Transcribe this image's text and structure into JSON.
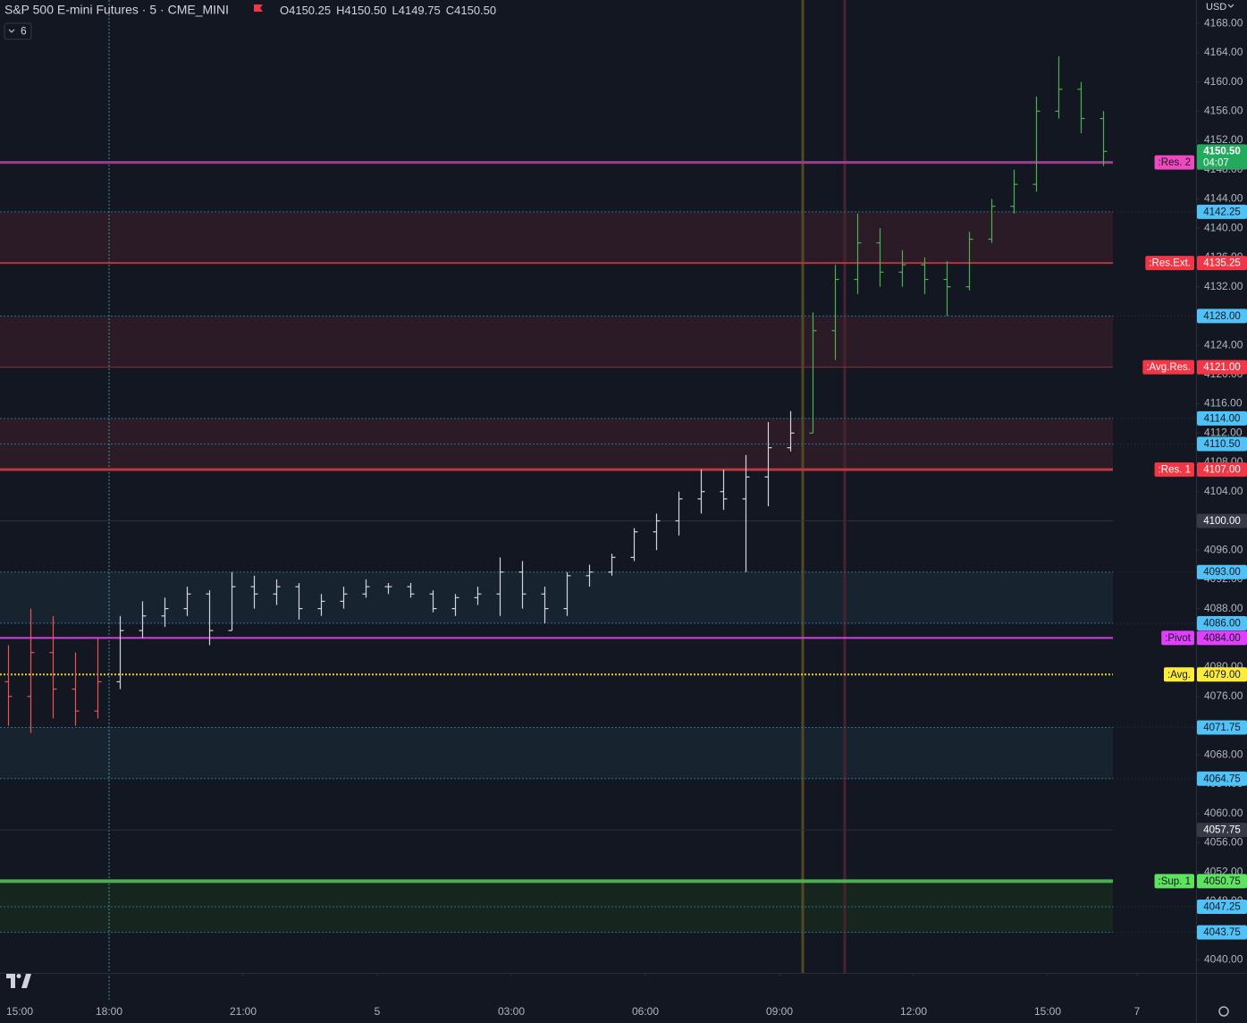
{
  "header": {
    "title": "S&P 500 E-mini Futures · 5 · CME_MINI",
    "ohlc": [
      "O4150.25",
      "H4150.50",
      "L4149.75",
      "C4150.50"
    ],
    "indicators": "6",
    "currency": "USD"
  },
  "chart_data": {
    "type": "ohlc",
    "xlim": [
      -0.44,
      26.32
    ],
    "ylim": [
      4038.2,
      4171.2
    ],
    "xticks": [
      {
        "value": 0,
        "label": "15:00"
      },
      {
        "value": 2,
        "label": "18:00"
      },
      {
        "value": 5,
        "label": "21:00"
      },
      {
        "value": 8,
        "label": "5"
      },
      {
        "value": 11,
        "label": "03:00"
      },
      {
        "value": 14,
        "label": "06:00"
      },
      {
        "value": 17,
        "label": "09:00"
      },
      {
        "value": 20,
        "label": "12:00"
      },
      {
        "value": 23,
        "label": "15:00"
      },
      {
        "value": 25,
        "label": "7"
      }
    ],
    "yticks": [
      {
        "value": 4040,
        "label": "4040.00"
      },
      {
        "value": 4044,
        "label": "4044.00"
      },
      {
        "value": 4048,
        "label": "4048.00"
      },
      {
        "value": 4052,
        "label": "4052.00"
      },
      {
        "value": 4056,
        "label": "4056.00"
      },
      {
        "value": 4060,
        "label": "4060.00"
      },
      {
        "value": 4064,
        "label": "4064.00"
      },
      {
        "value": 4068,
        "label": "4068.00"
      },
      {
        "value": 4072,
        "label": "4072.00"
      },
      {
        "value": 4076,
        "label": "4076.00"
      },
      {
        "value": 4080,
        "label": "4080.00"
      },
      {
        "value": 4084,
        "label": "4084.00"
      },
      {
        "value": 4088,
        "label": "4088.00"
      },
      {
        "value": 4092,
        "label": "4092.00"
      },
      {
        "value": 4096,
        "label": "4096.00"
      },
      {
        "value": 4100,
        "label": "4100.00"
      },
      {
        "value": 4104,
        "label": "4104.00"
      },
      {
        "value": 4108,
        "label": "4108.00"
      },
      {
        "value": 4112,
        "label": "4112.00"
      },
      {
        "value": 4116,
        "label": "4116.00"
      },
      {
        "value": 4120,
        "label": "4120.00"
      },
      {
        "value": 4124,
        "label": "4124.00"
      },
      {
        "value": 4128,
        "label": "4128.00"
      },
      {
        "value": 4132,
        "label": "4132.00"
      },
      {
        "value": 4136,
        "label": "4136.00"
      },
      {
        "value": 4140,
        "label": "4140.00"
      },
      {
        "value": 4144,
        "label": "4144.00"
      },
      {
        "value": 4148,
        "label": "4148.00"
      },
      {
        "value": 4152,
        "label": "4152.00"
      },
      {
        "value": 4156,
        "label": "4156.00"
      },
      {
        "value": 4160,
        "label": "4160.00"
      },
      {
        "value": 4164,
        "label": "4164.00"
      },
      {
        "value": 4168,
        "label": "4168.00"
      }
    ],
    "bar_groups": [
      {
        "color": "#ef5350",
        "x": [
          -0.25,
          0.25,
          0.75,
          1.25,
          1.75
        ],
        "open": [
          4078,
          4076,
          4082,
          4077,
          4074
        ],
        "high": [
          4083,
          4088,
          4087,
          4082,
          4084
        ],
        "low": [
          4072,
          4071,
          4073,
          4072,
          4073
        ],
        "close": [
          4076,
          4082,
          4077,
          4074,
          4078
        ]
      },
      {
        "color": "#d1d4dc",
        "x": [
          2.25,
          2.75,
          3.25,
          3.75,
          4.25,
          4.75,
          5.25,
          5.75,
          6.25,
          6.75,
          7.25,
          7.75,
          8.25,
          8.75,
          9.25,
          9.75,
          10.25,
          10.75,
          11.25,
          11.75,
          12.25,
          12.75,
          13.25,
          13.75,
          14.25,
          14.75,
          15.25,
          15.75,
          16.25,
          16.75,
          17.25
        ],
        "open": [
          4078,
          4085,
          4087,
          4088,
          4090,
          4085,
          4091,
          4090,
          4091,
          4088,
          4089,
          4090,
          4091,
          4091,
          4090,
          4088,
          4089.5,
          4090,
          4093,
          4090,
          4088,
          4092.5,
          4093,
          4095,
          4098.5,
          4100,
          4103,
          4104,
          4103,
          4106,
          4110
        ],
        "high": [
          4087,
          4089,
          4089.5,
          4091,
          4090.5,
          4093,
          4092.5,
          4092,
          4091.5,
          4090,
          4091,
          4092,
          4091.5,
          4091.5,
          4090.5,
          4090,
          4091,
          4095,
          4094.5,
          4091,
          4093,
          4094,
          4095.5,
          4099,
          4101,
          4104,
          4107,
          4107,
          4109,
          4113.5,
          4115
        ],
        "low": [
          4077,
          4084,
          4085.5,
          4087,
          4083,
          4085,
          4088,
          4088.5,
          4086.5,
          4087,
          4088,
          4089.5,
          4090,
          4089.5,
          4087.5,
          4087,
          4088.5,
          4087,
          4088,
          4086,
          4087,
          4091,
          4092.5,
          4094.5,
          4096,
          4098,
          4101,
          4101.5,
          4093,
          4102,
          4109.5
        ],
        "close": [
          4085,
          4087,
          4088,
          4090,
          4085,
          4091,
          4090,
          4091,
          4088,
          4089,
          4090,
          4091,
          4091,
          4090,
          4088,
          4089.5,
          4090,
          4093,
          4090,
          4088,
          4092.5,
          4093,
          4095,
          4098.5,
          4100,
          4103,
          4104,
          4103,
          4106,
          4110,
          4112
        ]
      },
      {
        "color": "#4caf50",
        "x": [
          17.75,
          18.25,
          18.75,
          19.25,
          19.75,
          20.25,
          20.75,
          21.25,
          21.75,
          22.25,
          22.75,
          23.25,
          23.75,
          24.25
        ],
        "open": [
          4112,
          4126,
          4133,
          4138,
          4134,
          4135,
          4133,
          4132,
          4138.5,
          4143,
          4146,
          4156,
          4159,
          4155
        ],
        "high": [
          4128.5,
          4135,
          4142,
          4140,
          4137,
          4136,
          4135.5,
          4139.5,
          4144,
          4148,
          4158,
          4163.5,
          4160,
          4156
        ],
        "low": [
          4112,
          4122,
          4131,
          4132,
          4132,
          4131,
          4128,
          4131.5,
          4138,
          4142,
          4145,
          4155,
          4153,
          4148.5
        ],
        "close": [
          4126,
          4133,
          4138,
          4134,
          4135,
          4133,
          4132,
          4138.5,
          4143,
          4146,
          4156,
          4159,
          4155,
          4150.5
        ]
      }
    ],
    "vertical_lines": [
      {
        "x": 2,
        "color": "#4a8ca8",
        "style": "dotted"
      },
      {
        "x": 17.52,
        "color": "#4d4a24",
        "style": "solid"
      },
      {
        "x": 18.46,
        "color": "#45242f",
        "style": "solid"
      }
    ],
    "zones": [
      {
        "from": 4135.25,
        "to": 4142.25,
        "color": "#2a1b26"
      },
      {
        "from": 4121,
        "to": 4128,
        "color": "#2a1b26"
      },
      {
        "from": 4107,
        "to": 4114,
        "color": "#2a1b26"
      },
      {
        "from": 4086,
        "to": 4093,
        "color": "#182330"
      },
      {
        "from": 4064.75,
        "to": 4071.75,
        "color": "#182330"
      },
      {
        "from": 4043.75,
        "to": 4050.75,
        "color": "#16261f"
      }
    ],
    "levels": [
      {
        "value": 4142.25,
        "value_label": "4142.25",
        "color": "#2a6f8f",
        "badge": "#4fc3f7",
        "style": "dotted",
        "width": 1
      },
      {
        "value": 4128,
        "value_label": "4128.00",
        "color": "#2a6f8f",
        "badge": "#4fc3f7",
        "style": "dotted",
        "width": 1
      },
      {
        "value": 4114,
        "value_label": "4114.00",
        "color": "#2a6f8f",
        "badge": "#4fc3f7",
        "style": "dotted",
        "width": 1
      },
      {
        "value": 4110.5,
        "value_label": "4110.50",
        "color": "#2a6f8f",
        "badge": "#4fc3f7",
        "style": "dotted",
        "width": 1
      },
      {
        "value": 4093,
        "value_label": "4093.00",
        "color": "#2a6f8f",
        "badge": "#4fc3f7",
        "style": "dotted",
        "width": 1
      },
      {
        "value": 4086,
        "value_label": "4086.00",
        "color": "#2a6f8f",
        "badge": "#4fc3f7",
        "style": "dotted",
        "width": 1
      },
      {
        "value": 4071.75,
        "value_label": "4071.75",
        "color": "#2a6f8f",
        "badge": "#4fc3f7",
        "style": "dotted",
        "width": 1
      },
      {
        "value": 4064.75,
        "value_label": "4064.75",
        "color": "#2a6f8f",
        "badge": "#4fc3f7",
        "style": "dotted",
        "width": 1
      },
      {
        "value": 4047.25,
        "value_label": "4047.25",
        "color": "#2a6f8f",
        "badge": "#4fc3f7",
        "style": "dotted",
        "width": 1
      },
      {
        "value": 4043.75,
        "value_label": "4043.75",
        "color": "#2a6f8f",
        "badge": "#4fc3f7",
        "style": "dotted",
        "width": 1
      },
      {
        "value": 4100,
        "value_label": "4100.00",
        "color": "#2a2e39",
        "badge": "#363a45",
        "style": "solid",
        "width": 1
      },
      {
        "value": 4057.75,
        "value_label": "4057.75",
        "color": "#2a2e39",
        "badge": "#363a45",
        "style": "solid",
        "width": 1
      },
      {
        "label": ":Res. 2",
        "value": 4149,
        "value_label": "4149.00",
        "color": "#9c3d8c",
        "badge": "#f048c0",
        "style": "solid",
        "width": 3
      },
      {
        "label": ":Res.Ext.",
        "value": 4135.25,
        "value_label": "4135.25",
        "color": "#b7343c",
        "badge": "#f23645",
        "style": "solid",
        "width": 2
      },
      {
        "label": ":Avg.Res.",
        "value": 4121,
        "value_label": "4121.00",
        "color": "#8c2f36",
        "badge": "#f23645",
        "style": "solid",
        "width": 1
      },
      {
        "label": ":Res. 1",
        "value": 4107,
        "value_label": "4107.00",
        "color": "#c0363e",
        "badge": "#f23645",
        "style": "solid",
        "width": 3
      },
      {
        "label": ":Pivot",
        "value": 4084,
        "value_label": "4084.00",
        "color": "#d340e0",
        "badge": "#e040fb",
        "style": "solid",
        "width": 2
      },
      {
        "label": ":Avg.",
        "value": 4079,
        "value_label": "4079.00",
        "color": "#e0d030",
        "badge": "#ffeb3b",
        "style": "dotted",
        "width": 2
      },
      {
        "label": ":Sup. 1",
        "value": 4050.75,
        "value_label": "4050.75",
        "color": "#4caf50",
        "badge": "#5ee35e",
        "style": "solid",
        "width": 4
      }
    ],
    "last_price": {
      "value": 4150.5,
      "value_label": "4150.50",
      "countdown": "04:07",
      "color": "#22ab5c"
    }
  }
}
